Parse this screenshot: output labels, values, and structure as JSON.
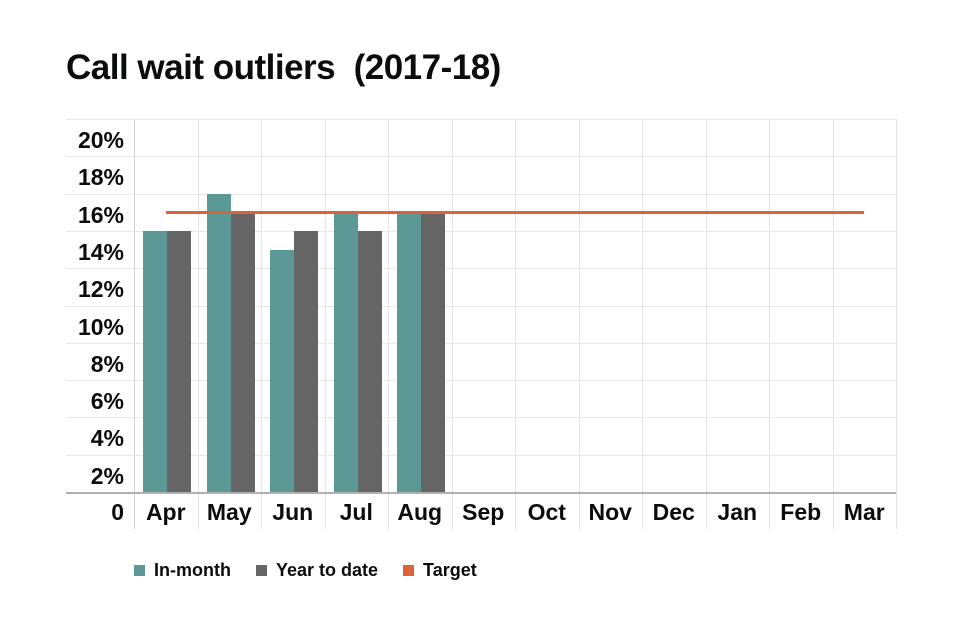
{
  "title": "Call wait outliers  (2017-18)",
  "legend": [
    {
      "label": "In-month",
      "color": "#5C9895"
    },
    {
      "label": "Year to date",
      "color": "#656565"
    },
    {
      "label": "Target",
      "color": "#DE6238"
    }
  ],
  "chart_data": {
    "type": "bar",
    "title": "Call wait outliers (2017-18)",
    "categories": [
      "Apr",
      "May",
      "Jun",
      "Jul",
      "Aug",
      "Sep",
      "Oct",
      "Nov",
      "Dec",
      "Jan",
      "Feb",
      "Mar"
    ],
    "series": [
      {
        "name": "In-month",
        "color": "#5C9895",
        "values": [
          14,
          16,
          13,
          15,
          15,
          null,
          null,
          null,
          null,
          null,
          null,
          null
        ]
      },
      {
        "name": "Year to date",
        "color": "#656565",
        "values": [
          14,
          15,
          14,
          14,
          15,
          null,
          null,
          null,
          null,
          null,
          null,
          null
        ]
      }
    ],
    "target": {
      "name": "Target",
      "value": 15,
      "color": "#DE6238"
    },
    "y_ticks": [
      "20%",
      "18%",
      "16%",
      "14%",
      "12%",
      "10%",
      "8%",
      "6%",
      "4%",
      "2%"
    ],
    "origin_label": "0",
    "ylim": [
      0,
      20
    ],
    "y_tick_step": 2,
    "unit": "%",
    "grid": true,
    "legend_position": "bottom",
    "xlabel": "",
    "ylabel": ""
  }
}
